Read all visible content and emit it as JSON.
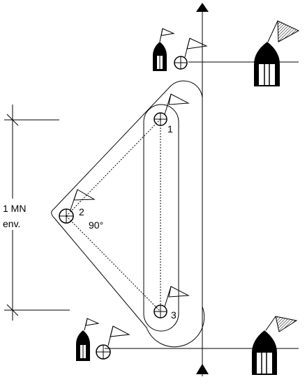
{
  "marks": {
    "mark_1": "1",
    "mark_2": "2",
    "mark_3": "3"
  },
  "angle_label": "90°",
  "distance_label": {
    "line1": "1 MN",
    "line2": "env."
  },
  "colors": {
    "stroke": "#000000",
    "background": "#ffffff"
  },
  "icons": [
    "committee-boat-icon",
    "pin-end-buoy-icon",
    "flag-icon",
    "direction-arrow-icon"
  ]
}
